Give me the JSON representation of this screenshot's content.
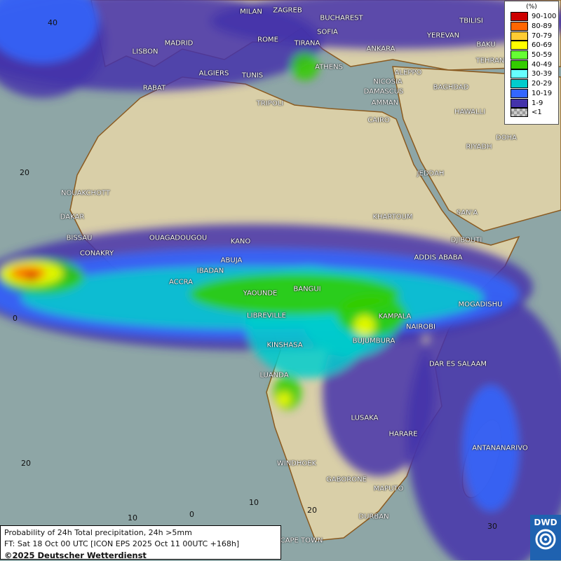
{
  "map": {
    "title": "Probability of 24h Total precipitation, 24h >5mm",
    "forecast_time": "FT: Sat 18 Oct 00 UTC [ICON EPS 2025 Oct 11 00UTC +168h]",
    "copyright": "©2025 Deutscher Wetterdienst",
    "logo_text": "DWD",
    "colors": {
      "sea": "#8ea6a6",
      "land": "#d9cfa8"
    },
    "latitude_labels": [
      "40",
      "20",
      "0",
      "20"
    ],
    "longitude_labels": [
      "10",
      "0",
      "10",
      "20",
      "30"
    ],
    "cities": [
      "MILAN",
      "ZAGREB",
      "BUCHAREST",
      "SOFIA",
      "ROME",
      "TIRANA",
      "ANKARA",
      "TBILISI",
      "YEREVAN",
      "BAKU",
      "LISBON",
      "MADRID",
      "ALGIERS",
      "TUNIS",
      "ATHENS",
      "RABAT",
      "NICOSIA",
      "ALEPPO",
      "TEHRAN",
      "DAMASCUS",
      "AMMAN",
      "BAGHDAD",
      "TRIPOLI",
      "CAIRO",
      "HAWALLI",
      "DOHA",
      "RIYADH",
      "JEDDAH",
      "NOUAKCHOTT",
      "DAKAR",
      "KHARTOUM",
      "SAN'A",
      "BISSAU",
      "OUAGADOUGOU",
      "KANO",
      "DJIBOUTI",
      "CONAKRY",
      "ABUJA",
      "ADDIS ABABA",
      "IBADAN",
      "ACCRA",
      "BANGUI",
      "YAOUNDE",
      "MOGADISHU",
      "LIBREVILLE",
      "KAMPALA",
      "NAIROBI",
      "KINSHASA",
      "BUJUMBURA",
      "DAR ES SALAAM",
      "LUANDA",
      "LUSAKA",
      "HARARE",
      "ANTANANARIVO",
      "WINDHOEK",
      "GABORONE",
      "MAPUTO",
      "DURBAN",
      "CAPE TOWN"
    ]
  },
  "legend": {
    "unit": "(%)",
    "items": [
      {
        "label": "90-100",
        "color": "#cc0000"
      },
      {
        "label": "80-89",
        "color": "#ff6600"
      },
      {
        "label": "70-79",
        "color": "#ffcc33"
      },
      {
        "label": "60-69",
        "color": "#ffff00"
      },
      {
        "label": "50-59",
        "color": "#66ff33"
      },
      {
        "label": "40-49",
        "color": "#33cc00"
      },
      {
        "label": "30-39",
        "color": "#66ffff"
      },
      {
        "label": "20-29",
        "color": "#00cccc"
      },
      {
        "label": "10-19",
        "color": "#3366ff"
      },
      {
        "label": "1-9",
        "color": "#4433aa"
      },
      {
        "label": "<1",
        "color": "#aaaaaa"
      }
    ]
  }
}
